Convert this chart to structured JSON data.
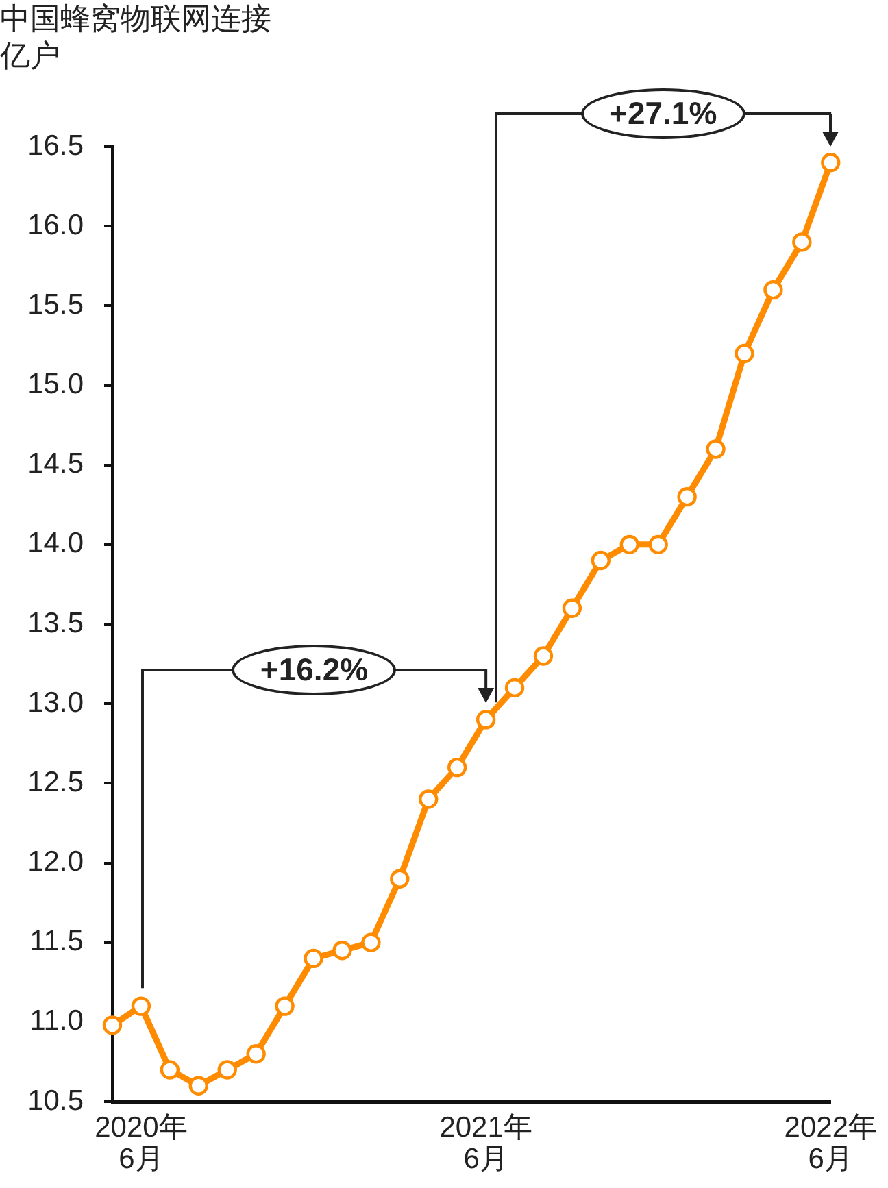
{
  "chart_data": {
    "type": "line",
    "title": "中国蜂窝物联网连接",
    "ylabel": "亿户",
    "categories": [
      null,
      "2020年\n6月",
      null,
      null,
      null,
      null,
      null,
      null,
      null,
      null,
      null,
      null,
      null,
      "2021年\n6月",
      null,
      null,
      null,
      null,
      null,
      null,
      null,
      null,
      null,
      null,
      null,
      "2022年\n6月"
    ],
    "series": [
      {
        "color": "#ff8c00",
        "values": [
          10.98,
          11.1,
          10.7,
          10.6,
          10.7,
          10.8,
          11.1,
          11.4,
          11.45,
          11.5,
          11.9,
          12.4,
          12.6,
          12.9,
          13.1,
          13.3,
          13.6,
          13.9,
          14.0,
          14.0,
          14.3,
          14.6,
          15.2,
          15.6,
          15.9,
          16.4
        ]
      }
    ],
    "ylim": [
      10.5,
      16.5
    ],
    "yticks": [
      10.5,
      {
        "value": 11,
        "label": "11.0"
      },
      11.5,
      {
        "value": 12,
        "label": "12.0"
      },
      12.5,
      {
        "value": 13,
        "label": "13.0"
      },
      13.5,
      {
        "value": 14,
        "label": "14.0"
      },
      14.5,
      {
        "value": 15,
        "label": "15.0"
      },
      15.5,
      {
        "value": 16,
        "label": "16.0"
      },
      16.5
    ],
    "marker": "circle",
    "line_style": "solid",
    "annotations": [
      "+16.2%",
      "+27.1%"
    ]
  }
}
